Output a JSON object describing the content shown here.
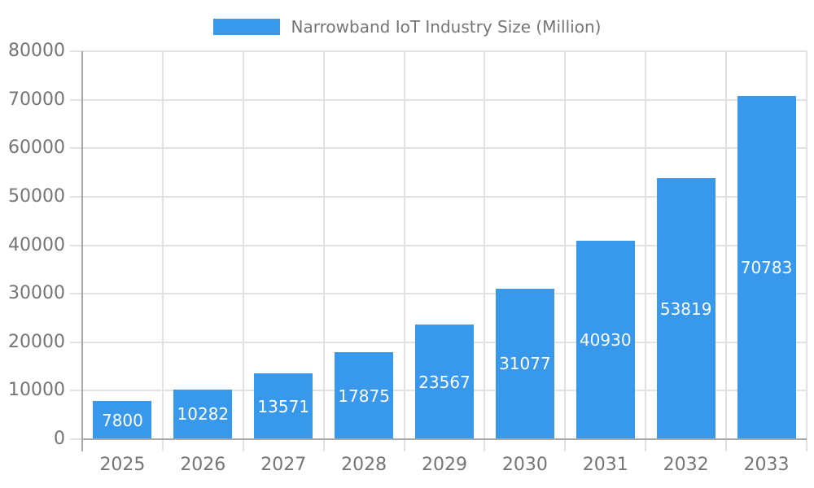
{
  "chart_data": {
    "type": "bar",
    "title": "Narrowband IoT Industry Size (Million)",
    "categories": [
      "2025",
      "2026",
      "2027",
      "2028",
      "2029",
      "2030",
      "2031",
      "2032",
      "2033"
    ],
    "values": [
      7800,
      10282,
      13571,
      17875,
      23567,
      31077,
      40930,
      53819,
      70783
    ],
    "value_labels": [
      "7800",
      "10282",
      "13571",
      "17875",
      "23567",
      "31077",
      "40930",
      "53819",
      "70783"
    ],
    "xlabel": "",
    "ylabel": "",
    "ylim": [
      0,
      80000
    ],
    "yticks": [
      0,
      10000,
      20000,
      30000,
      40000,
      50000,
      60000,
      70000,
      80000
    ],
    "grid": true,
    "value_labels_position": "inside-center",
    "legend": {
      "position": "top",
      "entries": [
        "Narrowband IoT Industry Size (Million)"
      ]
    },
    "colors": {
      "bar": "#3898ec",
      "value_label": "#ffffff",
      "grid": "#e2e2e2",
      "axis": "#a8a8a8",
      "tick_text": "#757575",
      "legend_text": "#757575",
      "background": "#ffffff"
    }
  }
}
